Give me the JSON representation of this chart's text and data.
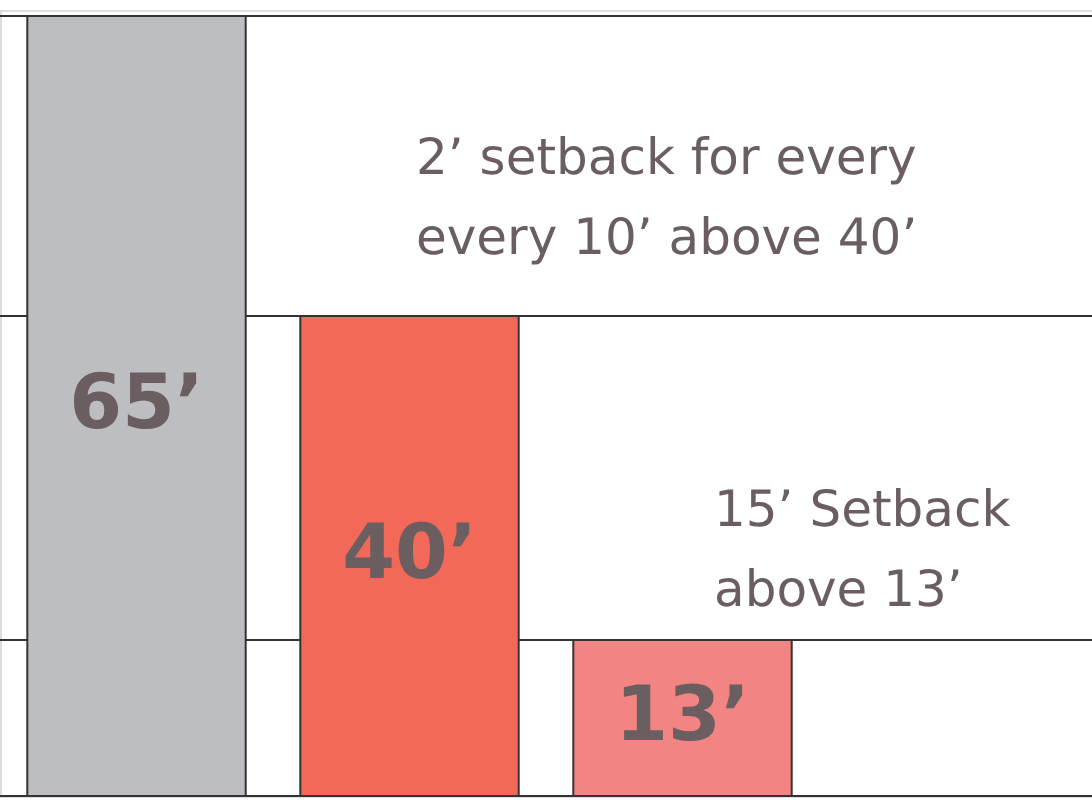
{
  "chart_data": {
    "type": "bar",
    "categories": [
      null,
      null,
      null
    ],
    "values": [
      65,
      40,
      13
    ],
    "colors": [
      "#bdbec2",
      "#f26859",
      "#f28583"
    ],
    "value_labels": [
      "65’",
      "40’",
      "13’"
    ],
    "ylim": [
      0,
      65.5
    ],
    "tick_labels": false,
    "ref_lines": [
      {
        "axis": "y",
        "value": 65,
        "label": null
      },
      {
        "axis": "y",
        "value": 40,
        "label": null
      },
      {
        "axis": "y",
        "value": 13,
        "label": null
      }
    ],
    "annotations": [
      "2’ setback for every\nevery 10’ above 40’",
      "15’ Setback\nabove 13’"
    ]
  }
}
